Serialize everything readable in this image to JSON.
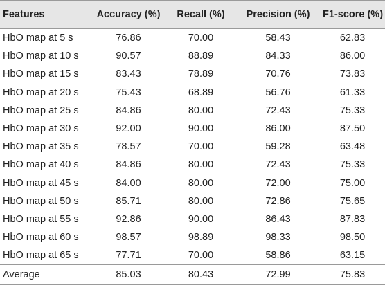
{
  "table": {
    "headers": [
      "Features",
      "Accuracy (%)",
      "Recall (%)",
      "Precision (%)",
      "F1-score (%)"
    ],
    "rows": [
      [
        "HbO map at 5 s",
        "76.86",
        "70.00",
        "58.43",
        "62.83"
      ],
      [
        "HbO map at 10 s",
        "90.57",
        "88.89",
        "84.33",
        "86.00"
      ],
      [
        "HbO map at 15 s",
        "83.43",
        "78.89",
        "70.76",
        "73.83"
      ],
      [
        "HbO map at 20 s",
        "75.43",
        "68.89",
        "56.76",
        "61.33"
      ],
      [
        "HbO map at 25 s",
        "84.86",
        "80.00",
        "72.43",
        "75.33"
      ],
      [
        "HbO map at 30 s",
        "92.00",
        "90.00",
        "86.00",
        "87.50"
      ],
      [
        "HbO map at 35 s",
        "78.57",
        "70.00",
        "59.28",
        "63.48"
      ],
      [
        "HbO map at 40 s",
        "84.86",
        "80.00",
        "72.43",
        "75.33"
      ],
      [
        "HbO map at 45 s",
        "84.00",
        "80.00",
        "72.00",
        "75.00"
      ],
      [
        "HbO map at 50 s",
        "85.71",
        "80.00",
        "72.86",
        "75.65"
      ],
      [
        "HbO map at 55 s",
        "92.86",
        "90.00",
        "86.43",
        "87.83"
      ],
      [
        "HbO map at 60 s",
        "98.57",
        "98.89",
        "98.33",
        "98.50"
      ],
      [
        "HbO map at 65 s",
        "77.71",
        "70.00",
        "58.86",
        "63.15"
      ]
    ],
    "average": [
      "Average",
      "85.03",
      "80.43",
      "72.99",
      "75.83"
    ]
  }
}
